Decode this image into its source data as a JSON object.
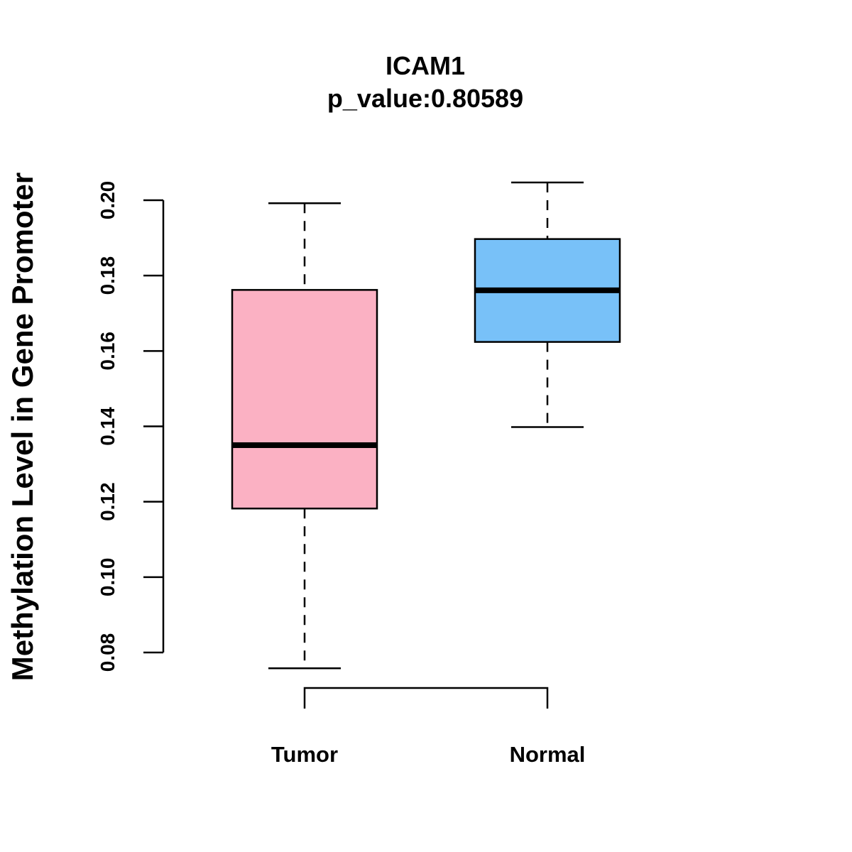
{
  "chart_data": {
    "type": "box",
    "title": "ICAM1",
    "subtitle": "p_value:0.80589",
    "xlabel": "",
    "ylabel": "Methylation Level in Gene Promoter",
    "ylim": [
      0.08,
      0.2
    ],
    "yticks": [
      "0.08",
      "0.10",
      "0.12",
      "0.14",
      "0.16",
      "0.18",
      "0.20"
    ],
    "categories": [
      "Tumor",
      "Normal"
    ],
    "series": [
      {
        "name": "Tumor",
        "color": "#FBB1C3",
        "whisker_low": 0.0758,
        "q1": 0.1182,
        "median": 0.135,
        "q3": 0.1762,
        "whisker_high": 0.1992
      },
      {
        "name": "Normal",
        "color": "#78C1F8",
        "whisker_low": 0.1398,
        "q1": 0.1624,
        "median": 0.1761,
        "q3": 0.1897,
        "whisker_high": 0.2047
      }
    ]
  }
}
